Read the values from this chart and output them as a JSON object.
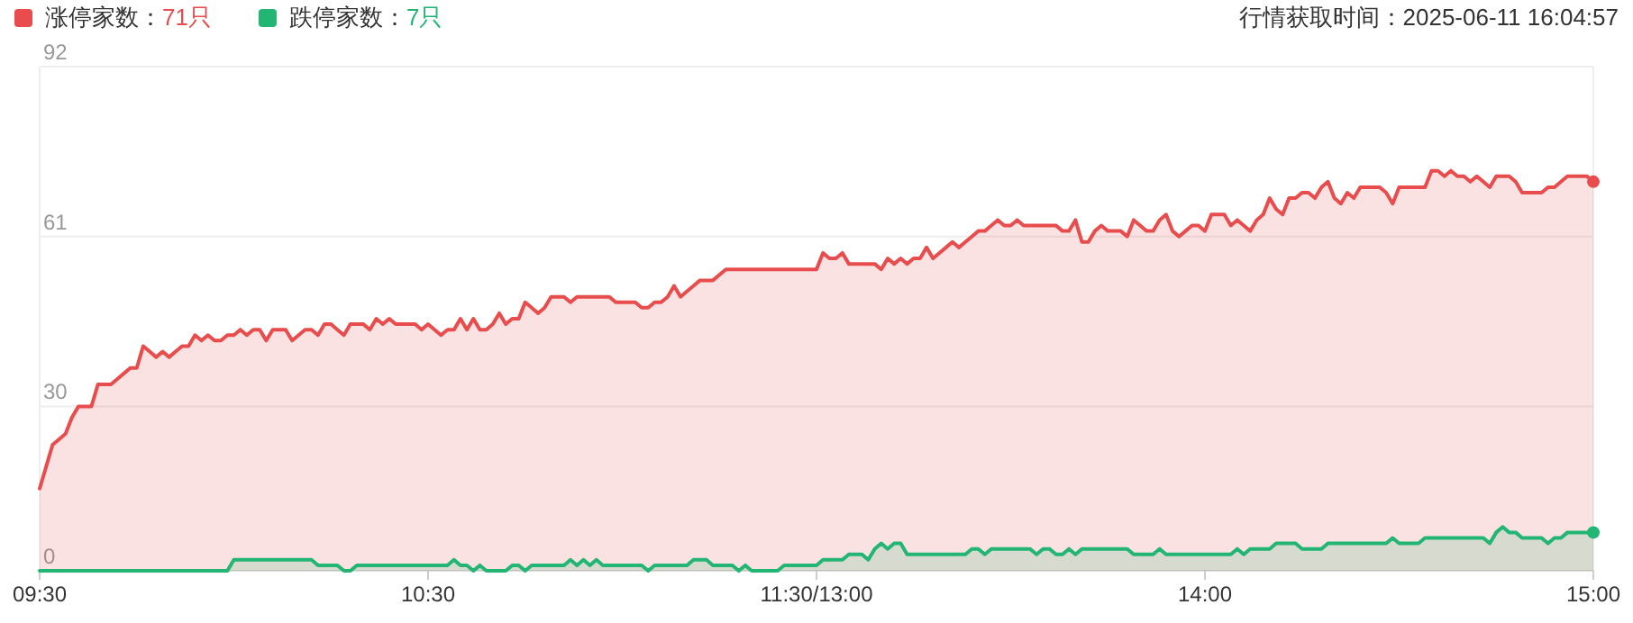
{
  "chart_data": {
    "type": "area",
    "ylim": [
      0,
      92
    ],
    "yticks": [
      0,
      30,
      61,
      92
    ],
    "grid": "y",
    "legend": "top left",
    "annotations": [
      "行情获取时间：2025-06-11 16:04:57"
    ],
    "categories": [
      "09:30",
      null,
      null,
      null,
      null,
      null,
      null,
      null,
      null,
      null,
      null,
      null,
      null,
      null,
      null,
      null,
      null,
      null,
      null,
      null,
      null,
      null,
      null,
      null,
      null,
      null,
      null,
      null,
      null,
      null,
      null,
      null,
      null,
      null,
      null,
      null,
      null,
      null,
      null,
      null,
      null,
      null,
      null,
      null,
      null,
      null,
      null,
      null,
      null,
      null,
      null,
      null,
      null,
      null,
      null,
      null,
      null,
      null,
      null,
      null,
      "10:30",
      null,
      null,
      null,
      null,
      null,
      null,
      null,
      null,
      null,
      null,
      null,
      null,
      null,
      null,
      null,
      null,
      null,
      null,
      null,
      null,
      null,
      null,
      null,
      null,
      null,
      null,
      null,
      null,
      null,
      null,
      null,
      null,
      null,
      null,
      null,
      null,
      null,
      null,
      null,
      null,
      null,
      null,
      null,
      null,
      null,
      null,
      null,
      null,
      null,
      null,
      null,
      null,
      null,
      null,
      null,
      null,
      null,
      null,
      null,
      "11:30/13:00",
      null,
      null,
      null,
      null,
      null,
      null,
      null,
      null,
      null,
      null,
      null,
      null,
      null,
      null,
      null,
      null,
      null,
      null,
      null,
      null,
      null,
      null,
      null,
      null,
      null,
      null,
      null,
      null,
      null,
      null,
      null,
      null,
      null,
      null,
      null,
      null,
      null,
      null,
      null,
      null,
      null,
      null,
      null,
      null,
      null,
      null,
      null,
      null,
      null,
      null,
      null,
      null,
      null,
      null,
      null,
      null,
      null,
      null,
      null,
      "14:00",
      null,
      null,
      null,
      null,
      null,
      null,
      null,
      null,
      null,
      null,
      null,
      null,
      null,
      null,
      null,
      null,
      null,
      null,
      null,
      null,
      null,
      null,
      null,
      null,
      null,
      null,
      null,
      null,
      null,
      null,
      null,
      null,
      null,
      null,
      null,
      null,
      null,
      null,
      null,
      null,
      null,
      null,
      null,
      null,
      null,
      null,
      null,
      null,
      null,
      null,
      null,
      null,
      null,
      null,
      null,
      null,
      null,
      null,
      null,
      "15:00"
    ],
    "series": [
      {
        "name": "涨停家数：71只",
        "color": "#e84c4c",
        "values": [
          15,
          19,
          23,
          24,
          25,
          28,
          30,
          30,
          30,
          34,
          34,
          34,
          35,
          36,
          37,
          37,
          41,
          40,
          39,
          40,
          39,
          40,
          41,
          41,
          43,
          42,
          43,
          42,
          42,
          43,
          43,
          44,
          43,
          44,
          44,
          42,
          44,
          44,
          44,
          42,
          43,
          44,
          44,
          43,
          45,
          45,
          44,
          43,
          45,
          45,
          45,
          44,
          46,
          45,
          46,
          45,
          45,
          45,
          45,
          44,
          45,
          44,
          43,
          44,
          44,
          46,
          44,
          46,
          44,
          44,
          45,
          47,
          45,
          46,
          46,
          49,
          48,
          47,
          48,
          50,
          50,
          50,
          49,
          50,
          50,
          50,
          50,
          50,
          50,
          49,
          49,
          49,
          49,
          48,
          48,
          49,
          49,
          50,
          52,
          50,
          51,
          52,
          53,
          53,
          53,
          54,
          55,
          55,
          55,
          55,
          55,
          55,
          55,
          55,
          55,
          55,
          55,
          55,
          55,
          55,
          55,
          58,
          57,
          57,
          58,
          56,
          56,
          56,
          56,
          56,
          55,
          57,
          56,
          57,
          56,
          57,
          57,
          59,
          57,
          58,
          59,
          60,
          59,
          60,
          61,
          62,
          62,
          63,
          64,
          63,
          63,
          64,
          63,
          63,
          63,
          63,
          63,
          63,
          62,
          62,
          64,
          60,
          60,
          62,
          63,
          62,
          62,
          62,
          61,
          64,
          63,
          62,
          62,
          64,
          65,
          62,
          61,
          62,
          63,
          63,
          62,
          65,
          65,
          65,
          63,
          64,
          63,
          62,
          64,
          65,
          68,
          66,
          65,
          68,
          68,
          69,
          69,
          68,
          70,
          71,
          68,
          67,
          69,
          68,
          70,
          70,
          70,
          70,
          69,
          67,
          70,
          70,
          70,
          70,
          70,
          73,
          73,
          72,
          73,
          72,
          72,
          71,
          72,
          71,
          70,
          72,
          72,
          72,
          71,
          69,
          69,
          69,
          69,
          70,
          70,
          71,
          72,
          72,
          72,
          72,
          71
        ]
      },
      {
        "name": "跌停家数：7只",
        "color": "#22b573",
        "values": [
          0,
          0,
          0,
          0,
          0,
          0,
          0,
          0,
          0,
          0,
          0,
          0,
          0,
          0,
          0,
          0,
          0,
          0,
          0,
          0,
          0,
          0,
          0,
          0,
          0,
          0,
          0,
          0,
          0,
          0,
          2,
          2,
          2,
          2,
          2,
          2,
          2,
          2,
          2,
          2,
          2,
          2,
          2,
          1,
          1,
          1,
          1,
          0,
          0,
          1,
          1,
          1,
          1,
          1,
          1,
          1,
          1,
          1,
          1,
          1,
          1,
          1,
          1,
          1,
          2,
          1,
          1,
          0,
          1,
          0,
          0,
          0,
          0,
          1,
          1,
          0,
          1,
          1,
          1,
          1,
          1,
          1,
          2,
          1,
          2,
          1,
          2,
          1,
          1,
          1,
          1,
          1,
          1,
          1,
          0,
          1,
          1,
          1,
          1,
          1,
          1,
          2,
          2,
          2,
          1,
          1,
          1,
          1,
          0,
          1,
          0,
          0,
          0,
          0,
          0,
          1,
          1,
          1,
          1,
          1,
          1,
          2,
          2,
          2,
          2,
          3,
          3,
          3,
          2,
          4,
          5,
          4,
          5,
          5,
          3,
          3,
          3,
          3,
          3,
          3,
          3,
          3,
          3,
          3,
          4,
          4,
          3,
          4,
          4,
          4,
          4,
          4,
          4,
          4,
          3,
          4,
          4,
          3,
          3,
          4,
          3,
          4,
          4,
          4,
          4,
          4,
          4,
          4,
          4,
          3,
          3,
          3,
          3,
          4,
          3,
          3,
          3,
          3,
          3,
          3,
          3,
          3,
          3,
          3,
          3,
          4,
          3,
          4,
          4,
          4,
          4,
          5,
          5,
          5,
          5,
          4,
          4,
          4,
          4,
          5,
          5,
          5,
          5,
          5,
          5,
          5,
          5,
          5,
          5,
          6,
          5,
          5,
          5,
          5,
          6,
          6,
          6,
          6,
          6,
          6,
          6,
          6,
          6,
          6,
          5,
          7,
          8,
          7,
          7,
          6,
          6,
          6,
          6,
          5,
          6,
          6,
          7,
          7,
          7,
          7,
          7
        ]
      }
    ]
  }
}
